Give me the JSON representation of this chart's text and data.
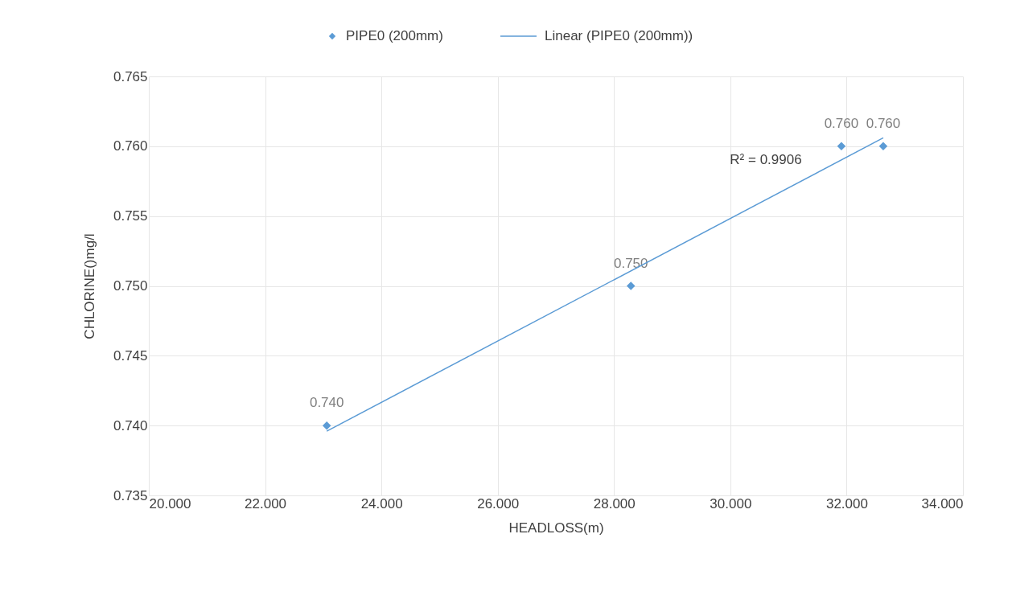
{
  "chart_data": {
    "type": "scatter",
    "xlabel": "HEADLOSS(m)",
    "ylabel": "CHLORINE()mg/l",
    "xlim": [
      20,
      34
    ],
    "xticks": [
      {
        "value": 20,
        "label": "20.000"
      },
      {
        "value": 22,
        "label": "22.000"
      },
      {
        "value": 24,
        "label": "24.000"
      },
      {
        "value": 26,
        "label": "26.000"
      },
      {
        "value": 28,
        "label": "28.000"
      },
      {
        "value": 30,
        "label": "30.000"
      },
      {
        "value": 32,
        "label": "32.000"
      },
      {
        "value": 34,
        "label": "34.000"
      }
    ],
    "ylim": [
      0.735,
      0.765
    ],
    "yticks": [
      0.735,
      {
        "value": 0.74,
        "label": "0.740"
      },
      0.745,
      {
        "value": 0.75,
        "label": "0.750"
      },
      0.755,
      {
        "value": 0.76,
        "label": "0.760"
      },
      0.765
    ],
    "grid": true,
    "legend": "top",
    "series": [
      {
        "name": "PIPE0 (200mm)",
        "type": "scatter",
        "marker": "diamond",
        "color": "#5b9bd5",
        "x": [
          23.06,
          28.29,
          31.91,
          32.63
        ],
        "values": [
          0.74,
          0.75,
          0.76,
          0.76
        ],
        "value_labels": [
          "0.740",
          "0.750",
          "0.760",
          "0.760"
        ]
      },
      {
        "name": "Linear (PIPE0 (200mm))",
        "type": "line",
        "color": "#5b9bd5",
        "x": [
          23.06,
          32.63
        ],
        "values": [
          0.7396,
          0.7606
        ]
      }
    ],
    "annotations": [
      "R² = 0.9906"
    ]
  }
}
